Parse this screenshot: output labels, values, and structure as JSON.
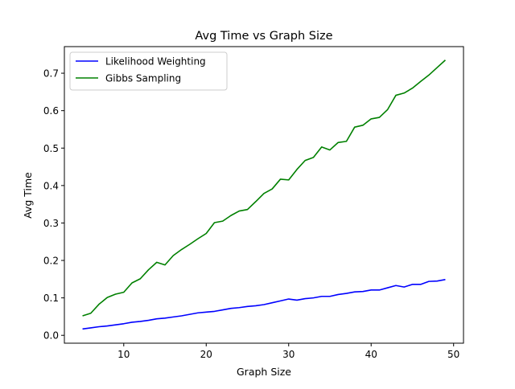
{
  "chart_data": {
    "type": "line",
    "title": "Avg Time vs Graph Size",
    "xlabel": "Graph Size",
    "ylabel": "Avg Time",
    "xlim": [
      2.8,
      51.2
    ],
    "ylim": [
      -0.021,
      0.771
    ],
    "xticks": [
      10,
      20,
      30,
      40,
      50
    ],
    "xtick_labels": [
      "10",
      "20",
      "30",
      "40",
      "50"
    ],
    "yticks": [
      0.0,
      0.1,
      0.2,
      0.3,
      0.4,
      0.5,
      0.6,
      0.7
    ],
    "ytick_labels": [
      "0.0",
      "0.1",
      "0.2",
      "0.3",
      "0.4",
      "0.5",
      "0.6",
      "0.7"
    ],
    "grid": false,
    "legend_position": "upper-left",
    "x": [
      5,
      6,
      7,
      8,
      9,
      10,
      11,
      12,
      13,
      14,
      15,
      16,
      17,
      18,
      19,
      20,
      21,
      22,
      23,
      24,
      25,
      26,
      27,
      28,
      29,
      30,
      31,
      32,
      33,
      34,
      35,
      36,
      37,
      38,
      39,
      40,
      41,
      42,
      43,
      44,
      45,
      46,
      47,
      48,
      49
    ],
    "series": [
      {
        "name": "Likelihood Weighting",
        "color": "#0000ff",
        "values": [
          0.017,
          0.02,
          0.023,
          0.025,
          0.028,
          0.031,
          0.035,
          0.037,
          0.04,
          0.044,
          0.046,
          0.049,
          0.052,
          0.056,
          0.06,
          0.062,
          0.064,
          0.068,
          0.072,
          0.074,
          0.077,
          0.079,
          0.082,
          0.087,
          0.092,
          0.097,
          0.094,
          0.098,
          0.1,
          0.104,
          0.104,
          0.109,
          0.112,
          0.116,
          0.117,
          0.121,
          0.121,
          0.127,
          0.133,
          0.129,
          0.136,
          0.136,
          0.144,
          0.145,
          0.149
        ]
      },
      {
        "name": "Gibbs Sampling",
        "color": "#008000",
        "values": [
          0.052,
          0.059,
          0.083,
          0.101,
          0.11,
          0.115,
          0.14,
          0.151,
          0.175,
          0.195,
          0.188,
          0.213,
          0.229,
          0.243,
          0.258,
          0.272,
          0.301,
          0.305,
          0.32,
          0.332,
          0.336,
          0.357,
          0.379,
          0.391,
          0.417,
          0.415,
          0.443,
          0.467,
          0.475,
          0.503,
          0.495,
          0.515,
          0.518,
          0.556,
          0.561,
          0.578,
          0.582,
          0.603,
          0.641,
          0.647,
          0.66,
          0.678,
          0.695,
          0.715,
          0.735
        ]
      }
    ]
  }
}
